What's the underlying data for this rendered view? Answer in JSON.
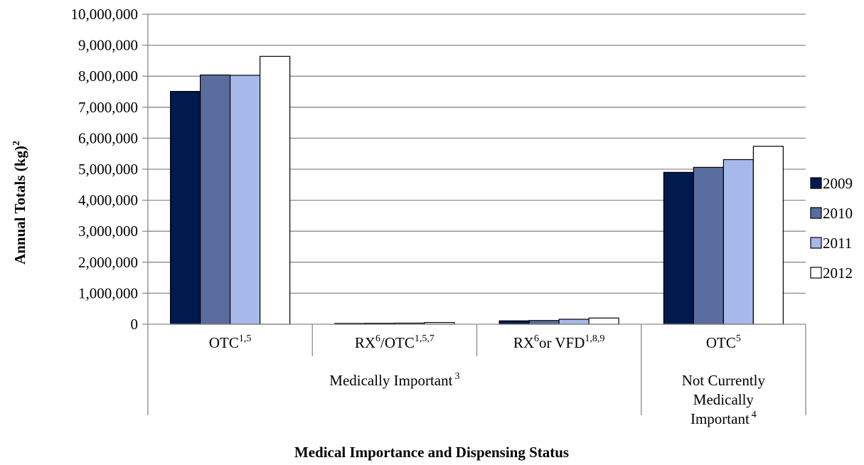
{
  "chart_data": {
    "type": "bar",
    "categories": [
      {
        "main": "OTC",
        "sup": "1,5",
        "group": 0
      },
      {
        "main": "RX",
        "sup": "6",
        "main2": "/OTC",
        "sup2": "1,5,7",
        "group": 0
      },
      {
        "main": "RX",
        "sup": "6",
        "main2": "or VFD",
        "sup2": "1,8,9",
        "group": 0
      },
      {
        "main": "OTC",
        "sup": "5",
        "group": 1
      }
    ],
    "groups": [
      {
        "lines": [
          "Medically Important"
        ],
        "sup": "3"
      },
      {
        "lines": [
          "Not Currently",
          "Medically",
          "Important"
        ],
        "sup": "4"
      }
    ],
    "series": [
      {
        "name": "2009",
        "color": "#001a4d",
        "values": [
          7510000,
          25000,
          110000,
          4900000
        ]
      },
      {
        "name": "2010",
        "color": "#596d9e",
        "values": [
          8040000,
          30000,
          120000,
          5060000
        ]
      },
      {
        "name": "2011",
        "color": "#a7b8ea",
        "values": [
          8030000,
          35000,
          160000,
          5310000
        ]
      },
      {
        "name": "2012",
        "color": "#ffffff",
        "values": [
          8640000,
          55000,
          200000,
          5740000
        ]
      }
    ],
    "ylim": [
      0,
      10000000
    ],
    "yticks": [
      0,
      1000000,
      2000000,
      3000000,
      4000000,
      5000000,
      6000000,
      7000000,
      8000000,
      9000000,
      10000000
    ],
    "ytick_labels": [
      "0",
      "1,000,000",
      "2,000,000",
      "3,000,000",
      "4,000,000",
      "5,000,000",
      "6,000,000",
      "7,000,000",
      "8,000,000",
      "9,000,000",
      "10,000,000"
    ],
    "ylabel": "Annual Totals (kg)",
    "ylabel_sup": "2",
    "xlabel": "Medical Importance and Dispensing Status",
    "grid": true,
    "legend_position": "right"
  }
}
